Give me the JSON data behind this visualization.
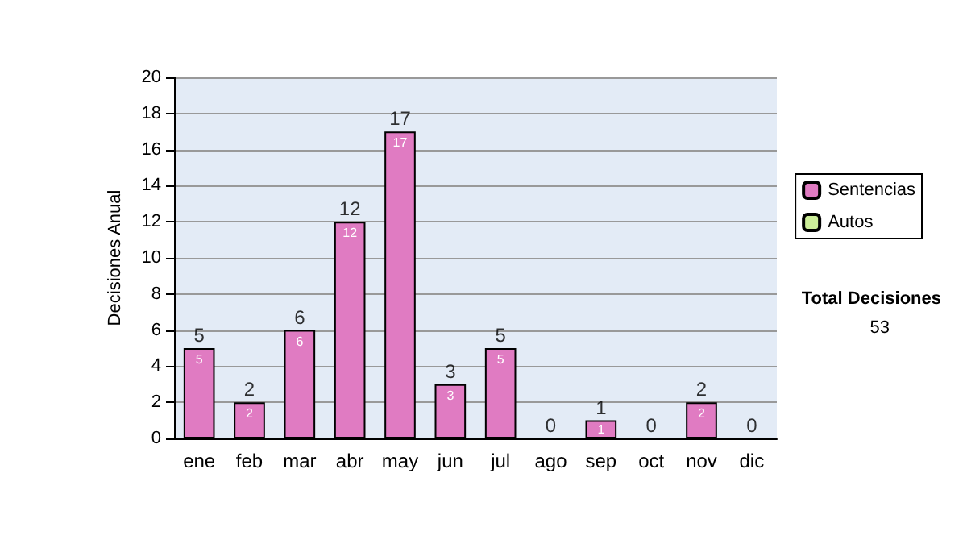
{
  "chart_data": {
    "type": "bar",
    "ylabel": "Decisiones Anual",
    "categories": [
      "ene",
      "feb",
      "mar",
      "abr",
      "may",
      "jun",
      "jul",
      "ago",
      "sep",
      "oct",
      "nov",
      "dic"
    ],
    "series": [
      {
        "name": "Sentencias",
        "color": "#e07bc2",
        "values": [
          5,
          2,
          6,
          12,
          17,
          3,
          5,
          0,
          1,
          0,
          2,
          0
        ],
        "value_labels": [
          "5",
          "2",
          "6",
          "12",
          "17",
          "3",
          "5",
          null,
          "1",
          null,
          "2",
          null
        ]
      },
      {
        "name": "Autos",
        "color": "#ccee99",
        "values": [
          0,
          0,
          0,
          0,
          0,
          0,
          0,
          0,
          0,
          0,
          0,
          0
        ]
      }
    ],
    "stacked": true,
    "totals": [
      "5",
      "2",
      "6",
      "12",
      "17",
      "3",
      "5",
      "0",
      "1",
      "0",
      "2",
      "0"
    ],
    "ylim": [
      0,
      20
    ],
    "yticks": [
      0,
      2,
      4,
      6,
      8,
      10,
      12,
      14,
      16,
      18,
      20
    ],
    "grid": "y",
    "legend": "right",
    "annotations": [
      "Total Decisiones",
      "53"
    ]
  }
}
